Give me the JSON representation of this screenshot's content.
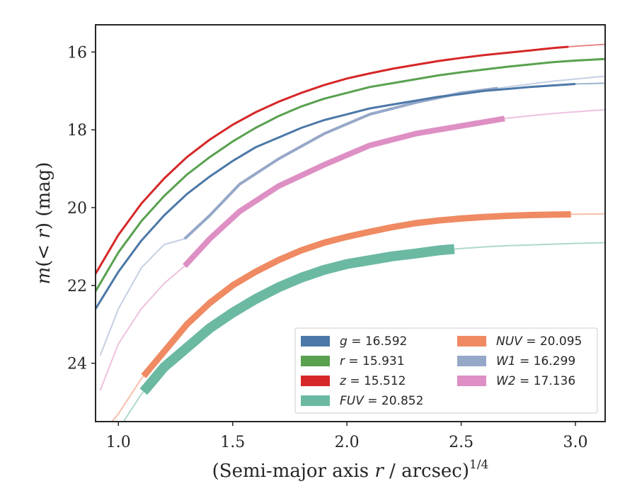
{
  "chart_data": {
    "type": "line",
    "xlabel_main": "(Semi-major axis ",
    "xlabel_var": "r",
    "xlabel_tail": " / arcsec)",
    "xlabel_sup": "1/4",
    "ylabel_var": "m",
    "ylabel_mid": "(< ",
    "ylabel_var2": "r",
    "ylabel_tail": ") (mag)",
    "xlim": [
      0.9,
      3.13
    ],
    "ylim": [
      25.5,
      15.3
    ],
    "y_inverted": true,
    "xticks": [
      1.0,
      1.5,
      2.0,
      2.5,
      3.0
    ],
    "xtick_labels": [
      "1.0",
      "1.5",
      "2.0",
      "2.5",
      "3.0"
    ],
    "yticks": [
      16,
      18,
      20,
      22,
      24
    ],
    "ytick_labels": [
      "16",
      "18",
      "20",
      "22",
      "24"
    ],
    "grid": false,
    "legend_placement": "lower-right",
    "series": [
      {
        "band": "g",
        "value": "16.592",
        "color": "#4c78a8",
        "x": [
          0.9,
          1.0,
          1.1,
          1.2,
          1.3,
          1.4,
          1.5,
          1.6,
          1.7,
          1.8,
          1.9,
          2.0,
          2.1,
          2.2,
          2.3,
          2.4,
          2.5,
          2.6,
          2.7,
          2.8,
          2.9,
          3.0,
          3.13
        ],
        "y": [
          22.6,
          21.65,
          20.85,
          20.2,
          19.65,
          19.2,
          18.8,
          18.45,
          18.2,
          17.95,
          17.75,
          17.6,
          17.45,
          17.35,
          17.25,
          17.15,
          17.08,
          17.0,
          16.95,
          16.9,
          16.86,
          16.82,
          16.8
        ],
        "solid_until": 3.0,
        "band_width": 3
      },
      {
        "band": "r",
        "value": "15.931",
        "color": "#59a14f",
        "x": [
          0.9,
          1.0,
          1.1,
          1.2,
          1.3,
          1.4,
          1.5,
          1.6,
          1.7,
          1.8,
          1.9,
          2.0,
          2.1,
          2.2,
          2.3,
          2.4,
          2.5,
          2.6,
          2.7,
          2.8,
          2.9,
          3.0,
          3.13
        ],
        "y": [
          22.15,
          21.15,
          20.35,
          19.7,
          19.15,
          18.7,
          18.3,
          17.95,
          17.65,
          17.4,
          17.2,
          17.05,
          16.9,
          16.8,
          16.7,
          16.6,
          16.52,
          16.45,
          16.38,
          16.32,
          16.26,
          16.22,
          16.18
        ],
        "solid_until": 3.13,
        "band_width": 3
      },
      {
        "band": "z",
        "value": "15.512",
        "color": "#d62728",
        "x": [
          0.9,
          1.0,
          1.1,
          1.2,
          1.3,
          1.4,
          1.5,
          1.6,
          1.7,
          1.8,
          1.9,
          2.0,
          2.1,
          2.2,
          2.3,
          2.4,
          2.5,
          2.6,
          2.7,
          2.8,
          2.9,
          3.0,
          3.13
        ],
        "y": [
          21.7,
          20.7,
          19.9,
          19.25,
          18.7,
          18.25,
          17.87,
          17.55,
          17.28,
          17.05,
          16.85,
          16.68,
          16.55,
          16.43,
          16.33,
          16.23,
          16.15,
          16.08,
          16.02,
          15.96,
          15.9,
          15.85,
          15.8
        ],
        "solid_until": 2.97,
        "band_width": 3
      },
      {
        "band": "FUV",
        "value": "20.852",
        "color": "#6bb9a3",
        "x": [
          0.9,
          1.0,
          1.1,
          1.2,
          1.3,
          1.4,
          1.5,
          1.6,
          1.7,
          1.8,
          1.9,
          2.0,
          2.1,
          2.2,
          2.3,
          2.4,
          2.5,
          2.6,
          2.7,
          2.8,
          2.9,
          3.0,
          3.13
        ],
        "y": [
          26.4,
          25.7,
          24.8,
          24.1,
          23.6,
          23.1,
          22.7,
          22.35,
          22.05,
          21.8,
          21.6,
          21.45,
          21.35,
          21.25,
          21.18,
          21.1,
          21.05,
          21.01,
          20.98,
          20.96,
          20.94,
          20.92,
          20.9
        ],
        "solid_from": 1.11,
        "solid_until": 2.47,
        "band_width": 14
      },
      {
        "band": "NUV",
        "value": "20.095",
        "color": "#ef8a62",
        "x": [
          0.9,
          1.0,
          1.1,
          1.2,
          1.3,
          1.4,
          1.5,
          1.6,
          1.7,
          1.8,
          1.9,
          2.0,
          2.1,
          2.2,
          2.3,
          2.4,
          2.5,
          2.6,
          2.7,
          2.8,
          2.9,
          3.0,
          3.13
        ],
        "y": [
          26.0,
          25.3,
          24.4,
          23.7,
          23.0,
          22.45,
          22.0,
          21.65,
          21.35,
          21.1,
          20.9,
          20.75,
          20.62,
          20.5,
          20.4,
          20.33,
          20.28,
          20.24,
          20.21,
          20.19,
          20.18,
          20.17,
          20.16
        ],
        "solid_from": 1.11,
        "solid_until": 2.98,
        "band_width": 9
      },
      {
        "band": "W1",
        "value": "16.299",
        "color": "#96a8c8",
        "x": [
          0.92,
          1.0,
          1.1,
          1.2,
          1.29,
          1.4,
          1.53,
          1.7,
          1.9,
          2.1,
          2.3,
          2.5,
          2.7,
          2.9,
          3.13
        ],
        "y": [
          23.8,
          22.6,
          21.55,
          20.95,
          20.8,
          20.2,
          19.4,
          18.75,
          18.1,
          17.6,
          17.3,
          17.05,
          16.9,
          16.75,
          16.62
        ],
        "solid_from": 1.29,
        "solid_until": 2.66,
        "band_width": 4
      },
      {
        "band": "W2",
        "value": "17.136",
        "color": "#de8fc4",
        "x": [
          0.92,
          1.0,
          1.1,
          1.2,
          1.29,
          1.4,
          1.53,
          1.7,
          1.9,
          2.1,
          2.3,
          2.5,
          2.7,
          2.9,
          3.13
        ],
        "y": [
          24.7,
          23.5,
          22.6,
          21.95,
          21.5,
          20.8,
          20.1,
          19.45,
          18.9,
          18.4,
          18.1,
          17.9,
          17.7,
          17.58,
          17.48
        ],
        "solid_from": 1.29,
        "solid_until": 2.69,
        "band_width": 8
      }
    ],
    "legend": [
      {
        "band": "g",
        "eq": " = 16.592",
        "color": "#4c78a8",
        "italic": true
      },
      {
        "band": "r",
        "eq": " = 15.931",
        "color": "#59a14f",
        "italic": true
      },
      {
        "band": "z",
        "eq": " = 15.512",
        "color": "#d62728",
        "italic": true
      },
      {
        "band": "FUV",
        "eq": " = 20.852",
        "color": "#6bb9a3",
        "italic": true
      },
      {
        "band": "NUV",
        "eq": " = 20.095",
        "color": "#ef8a62",
        "italic": true
      },
      {
        "band": "W1",
        "eq": " = 16.299",
        "color": "#96a8c8",
        "italic": true
      },
      {
        "band": "W2",
        "eq": " = 17.136",
        "color": "#de8fc4",
        "italic": true
      }
    ]
  }
}
